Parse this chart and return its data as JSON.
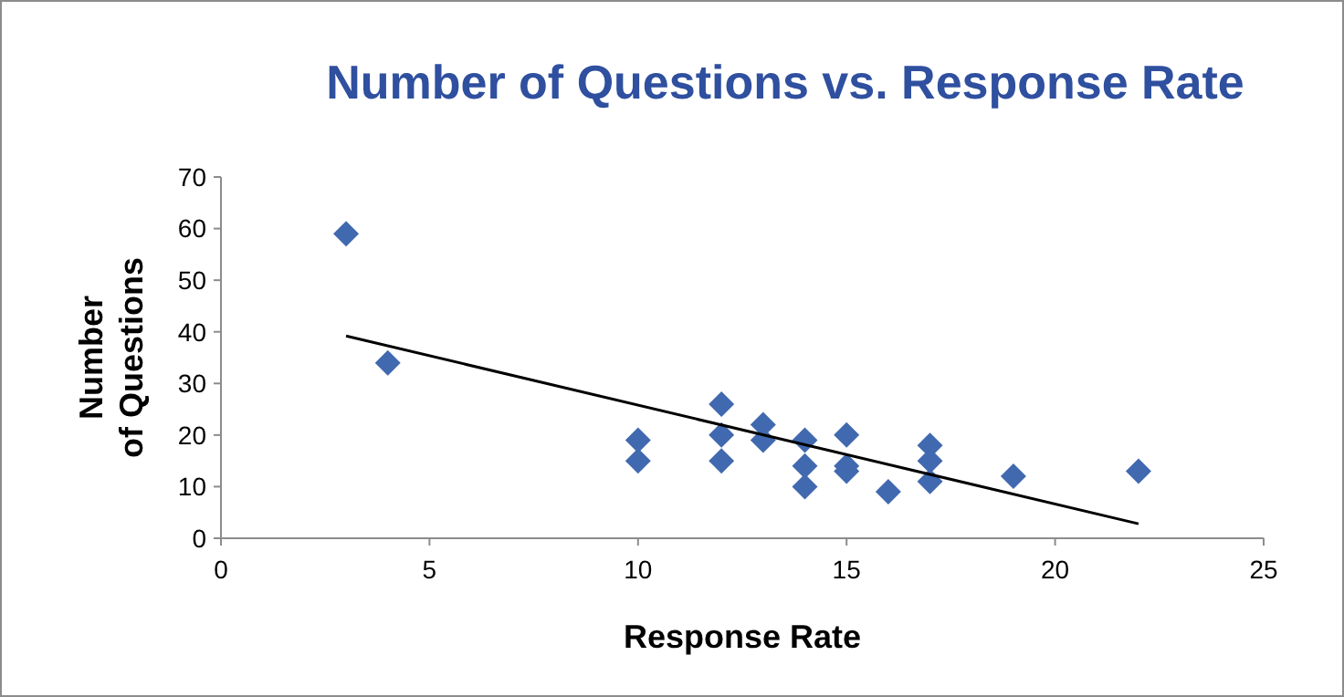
{
  "chart_data": {
    "type": "scatter",
    "title": "Number of Questions vs. Response Rate",
    "xlabel": "Response Rate",
    "ylabel": "Number of Questions",
    "xlim": [
      0,
      25
    ],
    "xticks": [
      0,
      5,
      10,
      15,
      20,
      25
    ],
    "ylim": [
      0,
      70
    ],
    "yticks": [
      0,
      10,
      20,
      30,
      40,
      50,
      60,
      70
    ],
    "grid": false,
    "series": [
      {
        "marker": "diamond",
        "color": "#4169b0",
        "x": [
          3,
          4,
          10,
          10,
          12,
          12,
          12,
          13,
          13,
          14,
          14,
          14,
          15,
          15,
          15,
          16,
          17,
          17,
          17,
          19,
          22
        ],
        "values": [
          59,
          34,
          19,
          15,
          26,
          20,
          15,
          22,
          19,
          19,
          14,
          10,
          20,
          14,
          13,
          9,
          18,
          15,
          11,
          12,
          13
        ]
      },
      {
        "type": "line",
        "color": "#000000",
        "x": [
          3,
          22
        ],
        "values": [
          39.2,
          2.8
        ]
      }
    ]
  }
}
